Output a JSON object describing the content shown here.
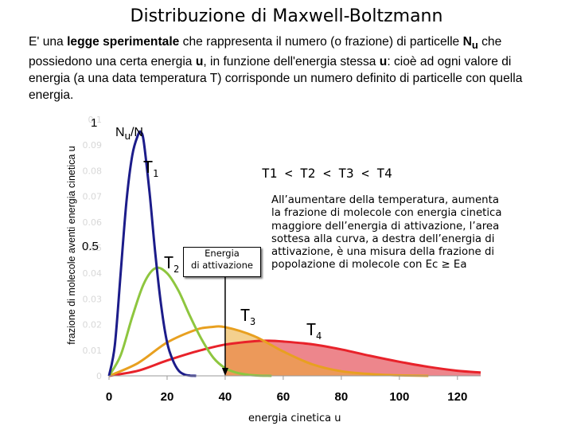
{
  "title": "Distribuzione di Maxwell-Boltzmann",
  "intro": {
    "p1": "E' una ",
    "b1": "legge sperimentale",
    "p2": " che rappresenta il numero (o frazione) di particelle ",
    "b2": "N",
    "b2sub": "u",
    "p3": " che possiedono una certa energia ",
    "b3": "u",
    "p4": ", in funzione dell'energia stessa ",
    "b4": "u",
    "p5": ": cioè ad ogni valore di energia (a una data temperatura T) corrisponde un numero definito di particelle con quella energia."
  },
  "annotations": {
    "y_big_1": "1",
    "y_big_05": "0.5",
    "nu_n_main": "N",
    "nu_n_sub": "u",
    "nu_n_rest": "/N",
    "t1": "T",
    "t1_sub": "1",
    "t2": "T",
    "t2_sub": "2",
    "t3": "T",
    "t3_sub": "3",
    "t4": "T",
    "t4_sub": "4",
    "relation": "T1 < T2 < T3 < T4",
    "note": "All’aumentare della temperatura, aumenta la frazione di molecole con energia cinetica maggiore dell’energia di attivazione, l’area sottesa alla curva, a destra dell’energia di attivazione, è una misura della frazione di popolazione di molecole con Ec ≥ Ea",
    "ea_line1": "Energia",
    "ea_line2": "di attivazione"
  },
  "chart_data": {
    "type": "area",
    "xlabel": "energia cinetica u",
    "ylabel": "frazione di molecole aventi energia cinetica u",
    "x_ticks": [
      "0",
      "20",
      "40",
      "60",
      "80",
      "100",
      "120"
    ],
    "xlim": [
      0,
      128
    ],
    "y_ticks": [
      "0",
      "0.01",
      "0.02",
      "0.03",
      "0.04",
      "0.05",
      "0.06",
      "0.07",
      "0.08",
      "0.09",
      "0.1"
    ],
    "ylim": [
      0,
      0.1
    ],
    "activation_energy": 40,
    "series": [
      {
        "name": "T1",
        "color": "#1c1c8a",
        "x": [
          0,
          2,
          4,
          6,
          8,
          10,
          11,
          12,
          14,
          16,
          18,
          20,
          22,
          24,
          26,
          28,
          30
        ],
        "y": [
          0,
          0.012,
          0.04,
          0.068,
          0.086,
          0.094,
          0.095,
          0.091,
          0.071,
          0.047,
          0.027,
          0.013,
          0.006,
          0.002,
          0.0005,
          0.0001,
          0
        ]
      },
      {
        "name": "T2",
        "color": "#8ec63f",
        "x": [
          0,
          4,
          8,
          12,
          16,
          20,
          24,
          28,
          32,
          36,
          40,
          44,
          48,
          52,
          56
        ],
        "y": [
          0,
          0.008,
          0.023,
          0.036,
          0.042,
          0.04,
          0.033,
          0.023,
          0.014,
          0.007,
          0.003,
          0.0012,
          0.0004,
          0.0001,
          0
        ]
      },
      {
        "name": "T3",
        "color": "#e8a020",
        "x": [
          0,
          10,
          20,
          30,
          35,
          40,
          50,
          60,
          70,
          80,
          90,
          100,
          110
        ],
        "y": [
          0,
          0.005,
          0.013,
          0.018,
          0.019,
          0.019,
          0.0155,
          0.0095,
          0.0045,
          0.0018,
          0.0007,
          0.0002,
          0
        ]
      },
      {
        "name": "T4",
        "color": "#e8222a",
        "x": [
          0,
          10,
          20,
          30,
          40,
          50,
          55,
          60,
          70,
          80,
          90,
          100,
          110,
          120,
          128
        ],
        "y": [
          0,
          0.002,
          0.006,
          0.0095,
          0.0122,
          0.0135,
          0.0137,
          0.0134,
          0.0123,
          0.0103,
          0.0078,
          0.0055,
          0.0035,
          0.002,
          0.0013
        ]
      }
    ],
    "grid": false,
    "legend": "none"
  }
}
